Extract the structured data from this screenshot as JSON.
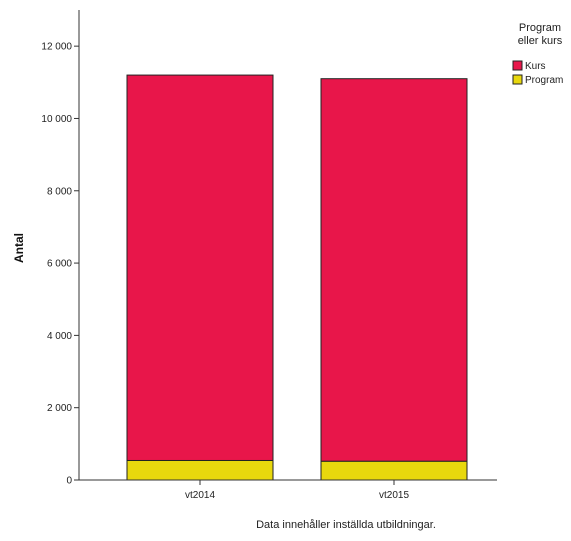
{
  "chart_data": {
    "type": "bar",
    "stacked": true,
    "categories": [
      "vt2014",
      "vt2015"
    ],
    "series": [
      {
        "name": "Program",
        "color": "#e8d80d",
        "values": [
          540,
          520
        ]
      },
      {
        "name": "Kurs",
        "color": "#e8164a",
        "values": [
          10660,
          10580
        ]
      }
    ],
    "ylabel": "Antal",
    "xlabel": "",
    "ylim": [
      0,
      13000
    ],
    "yticks": [
      0,
      2000,
      4000,
      6000,
      8000,
      10000,
      12000
    ],
    "ytick_labels": [
      "0",
      "2 000",
      "4 000",
      "6 000",
      "8 000",
      "10 000",
      "12 000"
    ],
    "grid": false,
    "legend": {
      "title_lines": [
        "Program",
        "eller kurs"
      ],
      "placement": "top-right",
      "entries": [
        "Kurs",
        "Program"
      ]
    },
    "footnote": "Data innehåller inställda utbildningar."
  }
}
